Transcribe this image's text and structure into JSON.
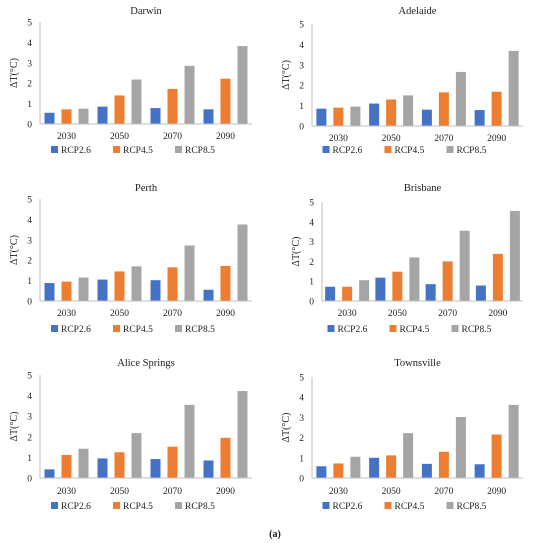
{
  "caption": "(a)",
  "colors": {
    "RCP2.6": "#4472C4",
    "RCP4.5": "#ED7D31",
    "RCP8.5": "#A5A5A5"
  },
  "chart_data": [
    {
      "type": "bar",
      "title": "Darwin",
      "ylabel": "ΔT(°C)",
      "ylim": [
        0,
        5
      ],
      "yticks": [
        "0",
        "1",
        "2",
        "3",
        "4",
        "5"
      ],
      "categories": [
        "2030",
        "2050",
        "2070",
        "2090"
      ],
      "series": [
        {
          "name": "RCP2.6",
          "values": [
            0.55,
            0.85,
            0.78,
            0.72
          ]
        },
        {
          "name": "RCP4.5",
          "values": [
            0.72,
            1.4,
            1.72,
            2.22
          ]
        },
        {
          "name": "RCP8.5",
          "values": [
            0.75,
            2.18,
            2.85,
            3.82
          ]
        }
      ],
      "grid": false,
      "legend": "bottom"
    },
    {
      "type": "bar",
      "title": "Adelaide",
      "ylabel": "ΔT(°C)",
      "ylim": [
        0,
        5
      ],
      "yticks": [
        "0",
        "1",
        "2",
        "3",
        "4",
        "5"
      ],
      "categories": [
        "2030",
        "2050",
        "2070",
        "2090"
      ],
      "series": [
        {
          "name": "RCP2.6",
          "values": [
            0.85,
            1.1,
            0.8,
            0.78
          ]
        },
        {
          "name": "RCP4.5",
          "values": [
            0.9,
            1.3,
            1.65,
            1.68
          ]
        },
        {
          "name": "RCP8.5",
          "values": [
            0.95,
            1.5,
            2.65,
            3.68
          ]
        }
      ],
      "grid": false,
      "legend": "bottom"
    },
    {
      "type": "bar",
      "title": "Perth",
      "ylabel": "ΔT(°C)",
      "ylim": [
        0,
        5
      ],
      "yticks": [
        "0",
        "1",
        "2",
        "3",
        "4",
        "5"
      ],
      "categories": [
        "2030",
        "2050",
        "2070",
        "2090"
      ],
      "series": [
        {
          "name": "RCP2.6",
          "values": [
            0.88,
            1.05,
            1.02,
            0.55
          ]
        },
        {
          "name": "RCP4.5",
          "values": [
            0.95,
            1.45,
            1.65,
            1.72
          ]
        },
        {
          "name": "RCP8.5",
          "values": [
            1.15,
            1.7,
            2.72,
            3.75
          ]
        }
      ],
      "grid": false,
      "legend": "bottom"
    },
    {
      "type": "bar",
      "title": "Brisbane",
      "ylabel": "ΔT(°C)",
      "ylim": [
        0,
        5
      ],
      "yticks": [
        "0",
        "1",
        "2",
        "3",
        "4",
        "5"
      ],
      "categories": [
        "2030",
        "2050",
        "2070",
        "2090"
      ],
      "series": [
        {
          "name": "RCP2.6",
          "values": [
            0.72,
            1.18,
            0.85,
            0.78
          ]
        },
        {
          "name": "RCP4.5",
          "values": [
            0.72,
            1.48,
            2.0,
            2.38
          ]
        },
        {
          "name": "RCP8.5",
          "values": [
            1.05,
            2.2,
            3.55,
            4.55
          ]
        }
      ],
      "grid": false,
      "legend": "bottom"
    },
    {
      "type": "bar",
      "title": "Alice Springs",
      "ylabel": "ΔT(°C)",
      "ylim": [
        0,
        5
      ],
      "yticks": [
        "0",
        "1",
        "2",
        "3",
        "4",
        "5"
      ],
      "categories": [
        "2030",
        "2050",
        "2070",
        "2090"
      ],
      "series": [
        {
          "name": "RCP2.6",
          "values": [
            0.42,
            0.95,
            0.92,
            0.85
          ]
        },
        {
          "name": "RCP4.5",
          "values": [
            1.12,
            1.25,
            1.52,
            1.95
          ]
        },
        {
          "name": "RCP8.5",
          "values": [
            1.42,
            2.18,
            3.55,
            4.22
          ]
        }
      ],
      "grid": false,
      "legend": "bottom"
    },
    {
      "type": "bar",
      "title": "Townsville",
      "ylabel": "ΔT(°C)",
      "ylim": [
        0,
        5
      ],
      "yticks": [
        "0",
        "1",
        "2",
        "3",
        "4",
        "5"
      ],
      "categories": [
        "2030",
        "2050",
        "2070",
        "2090"
      ],
      "series": [
        {
          "name": "RCP2.6",
          "values": [
            0.58,
            1.0,
            0.7,
            0.68
          ]
        },
        {
          "name": "RCP4.5",
          "values": [
            0.72,
            1.12,
            1.3,
            2.15
          ]
        },
        {
          "name": "RCP8.5",
          "values": [
            1.05,
            2.22,
            3.02,
            3.62
          ]
        }
      ],
      "grid": false,
      "legend": "bottom"
    }
  ]
}
